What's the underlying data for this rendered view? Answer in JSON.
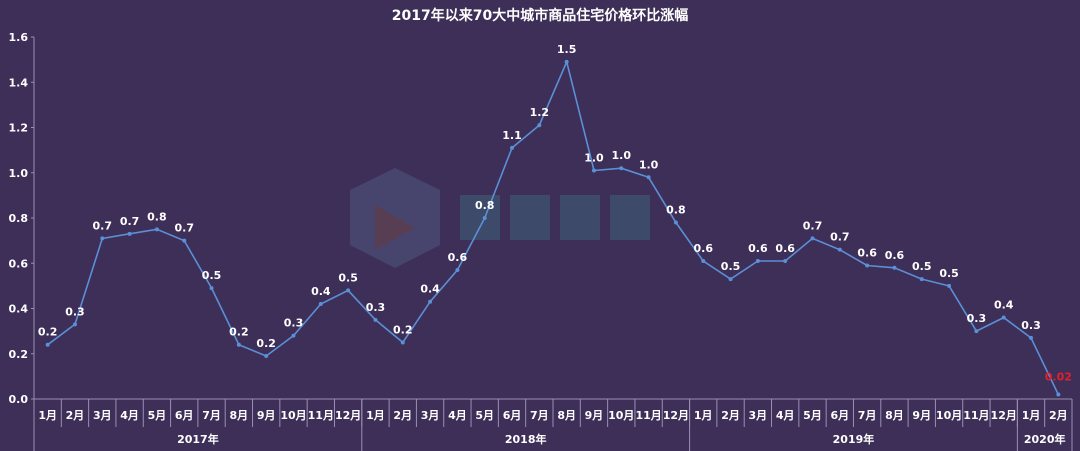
{
  "chart_data": {
    "type": "line",
    "title": "2017年以来70大中城市商品住宅价格环比涨幅",
    "ylim": [
      0,
      1.6
    ],
    "yticks": [
      "0.0",
      "0.2",
      "0.4",
      "0.6",
      "0.8",
      "1.0",
      "1.2",
      "1.4",
      "1.6"
    ],
    "grid": false,
    "years": [
      {
        "label": "2017年",
        "count": 12
      },
      {
        "label": "2018年",
        "count": 12
      },
      {
        "label": "2019年",
        "count": 12
      },
      {
        "label": "2020年",
        "count": 2
      }
    ],
    "categories": [
      "1月",
      "2月",
      "3月",
      "4月",
      "5月",
      "6月",
      "7月",
      "8月",
      "9月",
      "10月",
      "11月",
      "12月",
      "1月",
      "2月",
      "3月",
      "4月",
      "5月",
      "6月",
      "7月",
      "8月",
      "9月",
      "10月",
      "11月",
      "12月",
      "1月",
      "2月",
      "3月",
      "4月",
      "5月",
      "6月",
      "7月",
      "8月",
      "9月",
      "10月",
      "11月",
      "12月",
      "1月",
      "2月"
    ],
    "values": [
      0.24,
      0.33,
      0.71,
      0.73,
      0.75,
      0.7,
      0.49,
      0.24,
      0.19,
      0.28,
      0.42,
      0.48,
      0.35,
      0.25,
      0.43,
      0.57,
      0.8,
      1.11,
      1.21,
      1.49,
      1.01,
      1.02,
      0.98,
      0.78,
      0.61,
      0.53,
      0.61,
      0.61,
      0.71,
      0.66,
      0.59,
      0.58,
      0.53,
      0.5,
      0.3,
      0.36,
      0.27,
      0.02
    ],
    "data_labels": [
      "0.2",
      "0.3",
      "0.7",
      "0.7",
      "0.8",
      "0.7",
      "0.5",
      "0.2",
      "0.2",
      "0.3",
      "0.4",
      "0.5",
      "0.3",
      "0.2",
      "0.4",
      "0.6",
      "0.8",
      "1.1",
      "1.2",
      "1.5",
      "1.0",
      "1.0",
      "1.0",
      "0.8",
      "0.6",
      "0.5",
      "0.6",
      "0.6",
      "0.7",
      "0.7",
      "0.6",
      "0.6",
      "0.5",
      "0.5",
      "0.3",
      "0.4",
      "0.3",
      "0.02"
    ],
    "colors": {
      "line": "#5b8fd6",
      "label": "#ffffff",
      "highlight_label": "#e0202a",
      "axis": "#9b8fb5"
    }
  }
}
